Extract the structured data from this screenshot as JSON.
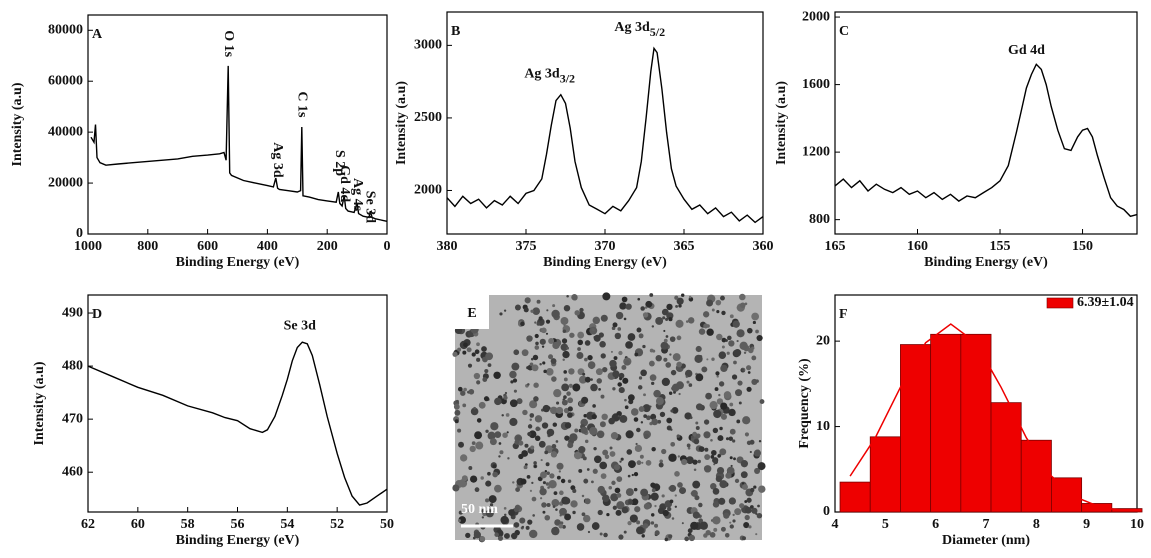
{
  "chart_data": [
    {
      "type": "line",
      "label": "A",
      "x_label": "Binding Energy (eV)",
      "y_label": "Intensity (a.u)",
      "xlim": [
        1000,
        0
      ],
      "xticks": [
        1000,
        800,
        600,
        400,
        200,
        0
      ],
      "ylim": [
        0,
        86000
      ],
      "yticks": [
        0,
        20000,
        40000,
        60000,
        80000
      ],
      "color": "#000000",
      "vertical_annotations": true,
      "x": [
        990,
        980,
        975,
        970,
        960,
        940,
        900,
        850,
        800,
        750,
        700,
        650,
        600,
        560,
        545,
        538,
        531,
        526,
        520,
        480,
        440,
        400,
        380,
        372,
        366,
        360,
        330,
        300,
        289,
        285,
        281,
        260,
        230,
        200,
        170,
        163,
        158,
        150,
        143,
        138,
        130,
        110,
        100,
        95,
        80,
        60,
        56,
        50,
        40,
        20,
        0
      ],
      "values": [
        38000,
        36000,
        43000,
        30000,
        28000,
        27000,
        27500,
        28000,
        28500,
        29000,
        29500,
        30500,
        31000,
        31500,
        32000,
        29000,
        66000,
        24000,
        23000,
        21000,
        20000,
        19000,
        18500,
        22000,
        18000,
        17500,
        17000,
        16500,
        17000,
        42000,
        15000,
        14500,
        13500,
        13000,
        12500,
        16500,
        12000,
        11000,
        15000,
        10000,
        9000,
        8500,
        12000,
        8000,
        7000,
        6500,
        9000,
        6500,
        6000,
        5500,
        5000
      ],
      "annotations": [
        {
          "text": "O 1s",
          "x": 531,
          "y": 80000
        },
        {
          "text": "C 1s",
          "x": 285,
          "y": 56000
        },
        {
          "text": "Ag 3d",
          "x": 368,
          "y": 36000
        },
        {
          "text": "S 2p",
          "x": 160,
          "y": 33000
        },
        {
          "text": "Gd 4d",
          "x": 143,
          "y": 27000
        },
        {
          "text": "Ag 4s",
          "x": 100,
          "y": 22000
        },
        {
          "text": "Se 3d",
          "x": 58,
          "y": 17000
        }
      ]
    },
    {
      "type": "line",
      "label": "B",
      "x_label": "Binding Energy (eV)",
      "y_label": "Intensity (a.u)",
      "xlim": [
        380,
        360
      ],
      "xticks": [
        380,
        375,
        370,
        365,
        360
      ],
      "ylim": [
        1700,
        3230
      ],
      "yticks": [
        2000,
        2500,
        3000
      ],
      "color": "#000000",
      "x": [
        380,
        379.5,
        379,
        378.5,
        378,
        377.5,
        377,
        376.5,
        376,
        375.5,
        375,
        374.5,
        374,
        373.7,
        373.4,
        373.1,
        372.8,
        372.5,
        372.2,
        371.9,
        371.5,
        371,
        370.5,
        370,
        369.5,
        369,
        368.5,
        368,
        367.7,
        367.4,
        367.1,
        366.9,
        366.7,
        366.4,
        366.1,
        365.8,
        365.5,
        365,
        364.5,
        364,
        363.5,
        363,
        362.5,
        362,
        361.5,
        361,
        360.5,
        360
      ],
      "values": [
        1950,
        1890,
        1960,
        1910,
        1940,
        1880,
        1930,
        1900,
        1960,
        1910,
        1980,
        2000,
        2080,
        2250,
        2450,
        2620,
        2660,
        2600,
        2430,
        2200,
        2020,
        1900,
        1870,
        1840,
        1890,
        1860,
        1930,
        2020,
        2200,
        2500,
        2820,
        2980,
        2950,
        2700,
        2400,
        2150,
        2030,
        1940,
        1870,
        1900,
        1840,
        1880,
        1820,
        1850,
        1790,
        1830,
        1780,
        1820
      ],
      "annotations": [
        {
          "text": "Ag 3d",
          "sub": "3/2",
          "x": 373.5,
          "y": 2800
        },
        {
          "text": "Ag 3d",
          "sub": "5/2",
          "x": 367.8,
          "y": 3120
        }
      ]
    },
    {
      "type": "line",
      "label": "C",
      "x_label": "Binding Energy (eV)",
      "y_label": "Intensity (a.u)",
      "xlim": [
        165,
        146.7
      ],
      "xticks": [
        165,
        160,
        155,
        150
      ],
      "ylim": [
        715,
        2030
      ],
      "yticks": [
        800,
        1200,
        1600,
        2000
      ],
      "color": "#000000",
      "x": [
        165,
        164.5,
        164,
        163.5,
        163,
        162.5,
        162,
        161.5,
        161,
        160.5,
        160,
        159.5,
        159,
        158.5,
        158,
        157.5,
        157,
        156.5,
        156,
        155.5,
        155,
        154.5,
        154,
        153.7,
        153.4,
        153.1,
        152.8,
        152.5,
        152.2,
        151.9,
        151.5,
        151.1,
        150.7,
        150.3,
        150,
        149.7,
        149.4,
        149.1,
        148.7,
        148.3,
        147.9,
        147.5,
        147.1,
        146.7
      ],
      "values": [
        1000,
        1040,
        990,
        1030,
        970,
        1010,
        980,
        960,
        990,
        950,
        970,
        930,
        960,
        920,
        950,
        910,
        940,
        930,
        960,
        990,
        1030,
        1120,
        1320,
        1450,
        1580,
        1660,
        1720,
        1690,
        1600,
        1470,
        1330,
        1220,
        1210,
        1290,
        1330,
        1340,
        1290,
        1180,
        1050,
        930,
        880,
        860,
        820,
        830
      ],
      "annotations": [
        {
          "text": "Gd 4d",
          "x": 153.4,
          "y": 1800
        }
      ]
    },
    {
      "type": "line",
      "label": "D",
      "x_label": "Binding Energy (eV)",
      "y_label": "Intensity (a.u)",
      "xlim": [
        62,
        50
      ],
      "xticks": [
        62,
        60,
        58,
        56,
        54,
        52,
        50
      ],
      "ylim": [
        452.5,
        493.4
      ],
      "yticks": [
        460,
        470,
        480,
        490
      ],
      "color": "#000000",
      "x": [
        62,
        61,
        60,
        59,
        58,
        57,
        56.5,
        56,
        55.5,
        55,
        54.8,
        54.5,
        54.2,
        54,
        53.8,
        53.6,
        53.4,
        53.2,
        53,
        52.7,
        52.4,
        52,
        51.7,
        51.4,
        51.1,
        50.8,
        50.4,
        50
      ],
      "values": [
        480,
        478,
        476,
        474.5,
        472.5,
        471.2,
        470.3,
        469.7,
        468.2,
        467.5,
        468,
        470.5,
        474.5,
        477.5,
        481,
        483.5,
        484.5,
        484.2,
        482,
        476.5,
        470.5,
        463.5,
        459,
        455.5,
        453.8,
        454.2,
        455.5,
        456.8
      ],
      "annotations": [
        {
          "text": "Se 3d",
          "x": 53.5,
          "y": 487.5
        }
      ]
    },
    {
      "type": "image",
      "label": "E",
      "scale_bar": "50 nm"
    },
    {
      "type": "histogram",
      "label": "F",
      "x_label": "Diameter (nm)",
      "y_label": "Frequency (%)",
      "xlim": [
        4,
        10
      ],
      "xticks": [
        4,
        5,
        6,
        7,
        8,
        9,
        10
      ],
      "ylim": [
        0,
        25.4
      ],
      "yticks": [
        0,
        10,
        20
      ],
      "bins": [
        4.1,
        4.7,
        5.3,
        5.9,
        6.5,
        7.1,
        7.7,
        8.3,
        8.9,
        9.5,
        10.1
      ],
      "series": [
        {
          "name": "6.39±1.04",
          "color": "#ee0000",
          "values": [
            3.5,
            8.8,
            19.6,
            20.8,
            20.8,
            12.8,
            8.4,
            4.0,
            1.0,
            0.4
          ]
        }
      ],
      "fit": {
        "color": "#ee0000",
        "x": [
          4.3,
          4.8,
          5.3,
          5.8,
          6.3,
          6.8,
          7.3,
          7.8,
          8.3,
          8.8,
          9.3,
          9.8
        ],
        "values": [
          4.2,
          8.7,
          14.6,
          19.8,
          22,
          19.8,
          14.6,
          8.7,
          4.2,
          1.7,
          0.5,
          0.14
        ]
      }
    }
  ]
}
